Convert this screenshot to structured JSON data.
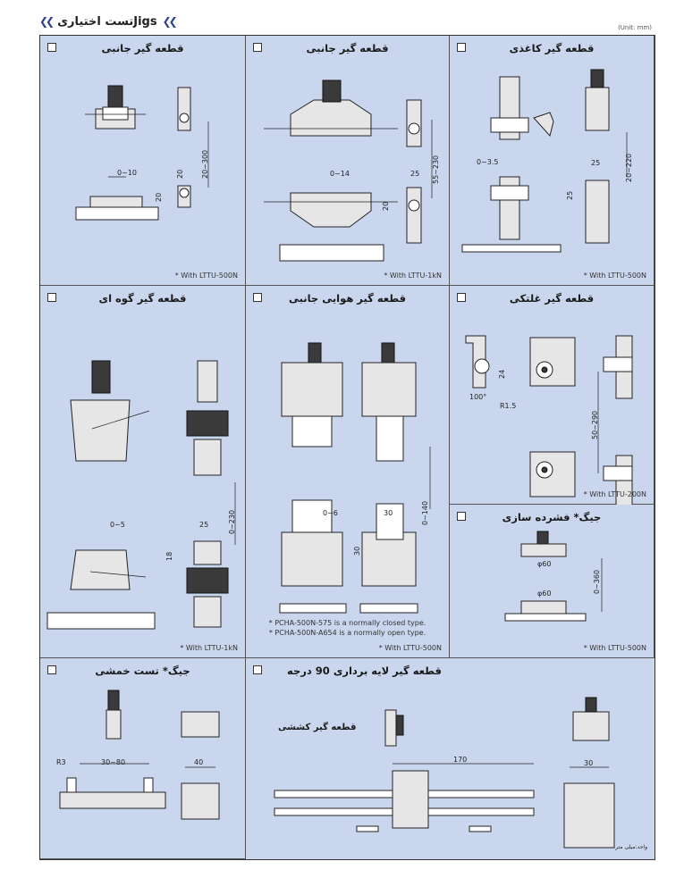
{
  "header": {
    "title": "تست اختیاریJigs",
    "unit": "(Unit: mm)"
  },
  "cells": [
    {
      "title": "قطعه گیر جانبی",
      "note": "* With LTTU-500N",
      "dims": [
        "0~10",
        "20~300",
        "20",
        "20"
      ]
    },
    {
      "title": "قطعه گیر جانبی",
      "note": "* With LTTU-1kN",
      "dims": [
        "0~14",
        "55~230",
        "25",
        "20"
      ]
    },
    {
      "title": "قطعه گیر کاغذی",
      "note": "* With LTTU-500N",
      "dims": [
        "0~3.5",
        "20~220",
        "25",
        "25"
      ]
    },
    {
      "title": "قطعه گیر گوه ای",
      "note": "* With LTTU-1kN",
      "dims": [
        "0~5",
        "0~230",
        "25",
        "18"
      ]
    },
    {
      "title": "قطعه گیر هوایی جانبی",
      "note": "* With LTTU-500N",
      "dims": [
        "0~6",
        "0~140",
        "30",
        "30"
      ],
      "lines": [
        "* PCHA-500N-575 is a normally closed type.",
        "* PCHA-500N-A654 is a normally open type."
      ]
    },
    {
      "title": "قطعه گیر غلتکی",
      "note": "* With LTTU-200N",
      "dims": [
        "24",
        "100°",
        "R1.5",
        "50~290"
      ]
    },
    {
      "title": "جیگ* فشرده سازی",
      "note": "* With LTTU-500N",
      "dims": [
        "φ60",
        "φ60",
        "0~360"
      ]
    },
    {
      "title": "جیگ* تست خمشی",
      "dims": [
        "R3",
        "30~80",
        "40"
      ]
    },
    {
      "title": "قطعه گیر لایه برداری 90 درجه",
      "subtitle": "قطعه گیر کششی",
      "dims": [
        "170",
        "30"
      ],
      "footnote": "واحد:میلی متر"
    }
  ]
}
